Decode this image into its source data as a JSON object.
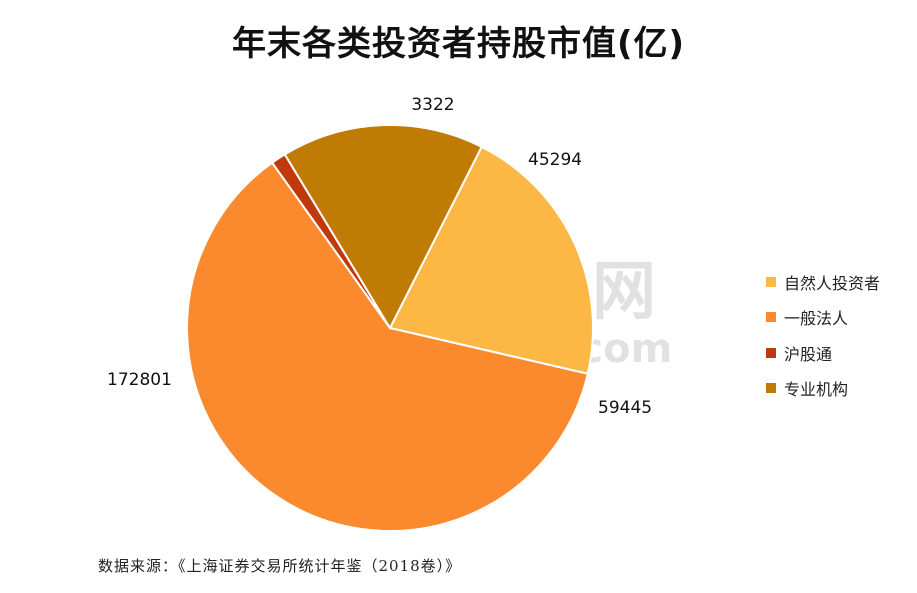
{
  "title": "年末各类投资者持股市值(亿)",
  "source": "数据来源：《上海证券交易所统计年鉴（2018卷）》",
  "watermark": {
    "cn": "东方财富网",
    "en": "eastmoney.com"
  },
  "chart_data": {
    "type": "pie",
    "title": "年末各类投资者持股市值(亿)",
    "categories": [
      "自然人投资者",
      "一般法人",
      "沪股通",
      "专业机构"
    ],
    "values": [
      59445,
      172801,
      3322,
      45294
    ],
    "colors": [
      "#FDB744",
      "#FB8A2E",
      "#C0390C",
      "#C07B05"
    ],
    "legend_position": "right",
    "data_labels": [
      "59445",
      "172801",
      "3322",
      "45294"
    ]
  }
}
